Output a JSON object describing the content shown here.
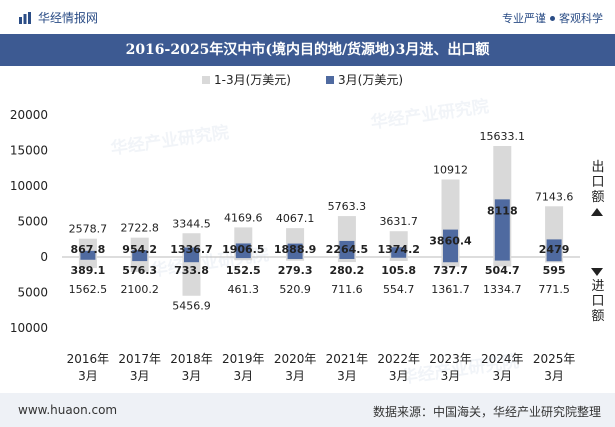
{
  "header": {
    "brand": "华经情报网",
    "slogan_left": "专业严谨",
    "slogan_right": "客观科学",
    "title": "2016-2025年汉中市(境内目的地/货源地)3月进、出口额"
  },
  "side": {
    "export": "出口额",
    "import": "进口额"
  },
  "footer": {
    "site": "www.huaon.com",
    "source": "数据来源：中国海关，华经产业研究院整理"
  },
  "watermark": {
    "text": "华经产业研究院",
    "url": "www.huaon.com"
  },
  "colors": {
    "ytd": "#d9d9d9",
    "month": "#4f6aa0",
    "title_bg": "#3d5a92"
  },
  "chart_data": {
    "type": "bar",
    "title": "2016-2025年汉中市(境内目的地/货源地)3月进、出口额",
    "categories": [
      "2016年\n3月",
      "2017年\n3月",
      "2018年\n3月",
      "2019年\n3月",
      "2020年\n3月",
      "2021年\n3月",
      "2022年\n3月",
      "2023年\n3月",
      "2024年\n3月",
      "2025年\n3月"
    ],
    "legend": [
      "1-3月(万美元)",
      "3月(万美元)"
    ],
    "ylim": [
      -10000,
      20000
    ],
    "yticks": [
      20000,
      15000,
      10000,
      5000,
      0,
      -5000,
      -10000
    ],
    "ytick_labels": [
      "20000",
      "15000",
      "10000",
      "5000",
      "0",
      "5000",
      "10000"
    ],
    "series": [
      {
        "name": "1-3月出口额(万美元)",
        "values": [
          2578.7,
          2722.8,
          3344.5,
          4169.6,
          4067.1,
          5763.3,
          3631.7,
          10912,
          15633.1,
          7143.6
        ],
        "labels": [
          "2578.7",
          "2722.8",
          "3344.5",
          "4169.6",
          "4067.1",
          "5763.3",
          "3631.7",
          "10912",
          "15633.1",
          "7143.6"
        ]
      },
      {
        "name": "3月出口额(万美元)",
        "values": [
          867.8,
          954.2,
          1336.7,
          1906.5,
          1888.9,
          2264.5,
          1374.2,
          3860.4,
          8118,
          2479
        ],
        "labels": [
          "867.8",
          "954.2",
          "1336.7",
          "1906.5",
          "1888.9",
          "2264.5",
          "1374.2",
          "3860.4",
          "8118",
          "2479"
        ]
      },
      {
        "name": "1-3月进口额(万美元)",
        "values": [
          1562.5,
          2100.2,
          5456.9,
          461.3,
          520.9,
          711.6,
          554.7,
          1361.7,
          1334.7,
          771.5
        ],
        "labels": [
          "1562.5",
          "2100.2",
          "5456.9",
          "461.3",
          "520.9",
          "711.6",
          "554.7",
          "1361.7",
          "1334.7",
          "771.5"
        ]
      },
      {
        "name": "3月进口额(万美元)",
        "values": [
          389.1,
          576.3,
          733.8,
          152.5,
          279.3,
          280.2,
          105.8,
          737.7,
          504.7,
          595
        ],
        "labels": [
          "389.1",
          "576.3",
          "733.8",
          "152.5",
          "279.3",
          "280.2",
          "105.8",
          "737.7",
          "504.7",
          "595"
        ]
      }
    ]
  }
}
